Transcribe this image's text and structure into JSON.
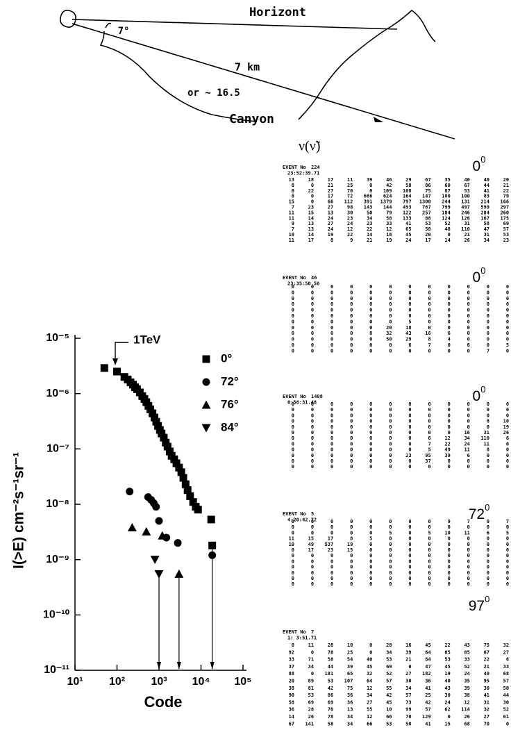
{
  "sketch": {
    "horizon": "Horizont",
    "angle": "7°",
    "distance": "7  km",
    "alt": "or ~ 16.5",
    "canyon": "Canyon",
    "symbol": "ν(ν̃)"
  },
  "chart_data": {
    "type": "scatter",
    "xlabel": "Code",
    "ylabel": "I(>E) cm⁻²s⁻¹sr⁻¹",
    "annotation": "1TeV",
    "xscale": "log",
    "yscale": "log",
    "xlim": [
      10,
      100000
    ],
    "ylim": [
      1e-11,
      1e-05
    ],
    "xticks": [
      {
        "value": 10,
        "label": "10¹"
      },
      {
        "value": 100,
        "label": "10²"
      },
      {
        "value": 1000,
        "label": "10³"
      },
      {
        "value": 10000,
        "label": "10⁴"
      },
      {
        "value": 100000,
        "label": "10⁵"
      }
    ],
    "yticks": [
      {
        "value": 1e-11,
        "label": "10⁻¹¹"
      },
      {
        "value": 1e-10,
        "label": "10⁻¹⁰"
      },
      {
        "value": 1e-09,
        "label": "10⁻⁹"
      },
      {
        "value": 1e-08,
        "label": "10⁻⁸"
      },
      {
        "value": 1e-07,
        "label": "10⁻⁷"
      },
      {
        "value": 1e-06,
        "label": "10⁻⁶"
      },
      {
        "value": 1e-05,
        "label": "10⁻⁵"
      }
    ],
    "legend": "upper right",
    "series": [
      {
        "name": "0°",
        "marker": "square",
        "color": "#000000",
        "arrow": true,
        "x": [
          50,
          100,
          150,
          180,
          210,
          240,
          270,
          300,
          350,
          400,
          450,
          500,
          560,
          620,
          700,
          780,
          860,
          950,
          1050,
          1150,
          1300,
          1450,
          1600,
          1800,
          2000,
          2300,
          2600,
          3000,
          3400,
          3800,
          4300,
          4800,
          5500,
          6500,
          7500,
          8500,
          17500,
          18500
        ],
        "values": [
          2.9e-06,
          2.5e-06,
          2e-06,
          1.8e-06,
          1.6e-06,
          1.45e-06,
          1.3e-06,
          1.2e-06,
          1.05e-06,
          9e-07,
          8e-07,
          7e-07,
          6e-07,
          5.2e-07,
          4.4e-07,
          3.7e-07,
          3.1e-07,
          2.6e-07,
          2.2e-07,
          1.9e-07,
          1.6e-07,
          1.3e-07,
          1.1e-07,
          9e-08,
          7.5e-08,
          6.5e-08,
          5.5e-08,
          4.6e-08,
          3.8e-08,
          3e-08,
          2.3e-08,
          1.8e-08,
          1.4e-08,
          1.1e-08,
          9e-09,
          8e-09,
          5.3e-09,
          1.8e-09
        ]
      },
      {
        "name": "72°",
        "marker": "circle",
        "color": "#000000",
        "arrow": false,
        "x": [
          200,
          550,
          650,
          750,
          850,
          1000,
          1500,
          2800,
          18500
        ],
        "values": [
          1.7e-08,
          1.35e-08,
          1.2e-08,
          1.05e-08,
          9e-09,
          5e-09,
          2.5e-09,
          2e-09,
          1.2e-09
        ]
      },
      {
        "name": "76°",
        "marker": "triangle-up",
        "color": "#000000",
        "arrow": true,
        "x": [
          230,
          500,
          1200,
          3000
        ],
        "values": [
          3.8e-09,
          3.2e-09,
          2.7e-09,
          5.5e-10
        ]
      },
      {
        "name": "84°",
        "marker": "triangle-down",
        "color": "#000000",
        "arrow": true,
        "x": [
          800,
          1000
        ],
        "values": [
          1e-09,
          5.5e-10
        ]
      }
    ]
  },
  "events": [
    {
      "label": "EVENT No",
      "number": 224,
      "time": "23:52:39.71",
      "angle": "0",
      "angle_sup": "0",
      "rows": [
        [
          13,
          18,
          17,
          11,
          39,
          46,
          29,
          67,
          35,
          40,
          40,
          20
        ],
        [
          8,
          0,
          21,
          25,
          0,
          42,
          58,
          86,
          60,
          67,
          44,
          21
        ],
        [
          0,
          22,
          27,
          70,
          0,
          109,
          108,
          75,
          87,
          53,
          41,
          22
        ],
        [
          8,
          0,
          17,
          72,
          686,
          624,
          164,
          147,
          180,
          100,
          83,
          79
        ],
        [
          15,
          0,
          66,
          112,
          391,
          1379,
          797,
          1300,
          244,
          131,
          214,
          166
        ],
        [
          7,
          23,
          27,
          98,
          143,
          144,
          493,
          767,
          799,
          497,
          599,
          297
        ],
        [
          11,
          15,
          13,
          30,
          50,
          79,
          122,
          257,
          184,
          246,
          284,
          260
        ],
        [
          11,
          14,
          24,
          23,
          34,
          58,
          133,
          88,
          124,
          126,
          167,
          175
        ],
        [
          9,
          13,
          27,
          24,
          23,
          33,
          41,
          53,
          52,
          31,
          58,
          69
        ],
        [
          7,
          13,
          24,
          12,
          22,
          12,
          65,
          58,
          48,
          110,
          47,
          57
        ],
        [
          10,
          14,
          19,
          22,
          14,
          18,
          45,
          20,
          0,
          21,
          31,
          53
        ],
        [
          11,
          17,
          8,
          9,
          21,
          19,
          24,
          17,
          14,
          26,
          34,
          23
        ]
      ]
    },
    {
      "label": "EVENT No",
      "number": 46,
      "time": "23:35:50.56",
      "angle": "0",
      "angle_sup": "0",
      "rows": [
        [
          0,
          0,
          0,
          0,
          0,
          0,
          0,
          0,
          0,
          0,
          0,
          0
        ],
        [
          0,
          0,
          0,
          0,
          0,
          0,
          0,
          0,
          0,
          0,
          0,
          0
        ],
        [
          0,
          0,
          0,
          0,
          0,
          0,
          0,
          0,
          0,
          0,
          0,
          0
        ],
        [
          0,
          0,
          0,
          0,
          0,
          0,
          0,
          0,
          0,
          0,
          0,
          0
        ],
        [
          0,
          0,
          0,
          0,
          0,
          0,
          0,
          0,
          0,
          0,
          0,
          0
        ],
        [
          0,
          0,
          0,
          0,
          0,
          0,
          0,
          0,
          0,
          0,
          0,
          0
        ],
        [
          0,
          0,
          0,
          0,
          0,
          0,
          5,
          0,
          0,
          0,
          0,
          0
        ],
        [
          0,
          0,
          0,
          0,
          0,
          20,
          18,
          0,
          0,
          0,
          0,
          0
        ],
        [
          0,
          0,
          0,
          0,
          8,
          32,
          43,
          16,
          6,
          0,
          0,
          0
        ],
        [
          0,
          0,
          0,
          0,
          0,
          50,
          29,
          8,
          4,
          0,
          0,
          0
        ],
        [
          0,
          0,
          0,
          0,
          0,
          0,
          6,
          7,
          0,
          6,
          0,
          5
        ],
        [
          0,
          0,
          0,
          0,
          0,
          0,
          0,
          0,
          0,
          0,
          7,
          0
        ]
      ]
    },
    {
      "label": "EVENT No",
      "number": 1408,
      "time": "0:56:31.48",
      "angle": "0",
      "angle_sup": "0",
      "rows": [
        [
          0,
          0,
          0,
          0,
          0,
          0,
          0,
          0,
          0,
          0,
          0,
          0
        ],
        [
          0,
          0,
          0,
          0,
          0,
          0,
          0,
          0,
          0,
          0,
          0,
          0
        ],
        [
          0,
          0,
          0,
          0,
          0,
          0,
          0,
          0,
          0,
          0,
          0,
          0
        ],
        [
          0,
          0,
          0,
          0,
          0,
          0,
          0,
          0,
          0,
          0,
          8,
          10
        ],
        [
          0,
          0,
          0,
          0,
          0,
          0,
          0,
          0,
          0,
          0,
          0,
          19
        ],
        [
          0,
          0,
          0,
          0,
          0,
          0,
          0,
          0,
          0,
          16,
          31,
          26
        ],
        [
          0,
          0,
          0,
          0,
          0,
          0,
          0,
          6,
          12,
          34,
          110,
          6
        ],
        [
          0,
          0,
          0,
          0,
          0,
          0,
          0,
          7,
          22,
          24,
          11,
          0
        ],
        [
          0,
          0,
          0,
          0,
          0,
          0,
          0,
          5,
          49,
          11,
          8,
          0
        ],
        [
          0,
          0,
          0,
          0,
          0,
          0,
          23,
          95,
          39,
          6,
          0,
          0
        ],
        [
          0,
          0,
          0,
          0,
          0,
          0,
          0,
          37,
          0,
          0,
          0,
          0
        ],
        [
          0,
          0,
          0,
          0,
          0,
          0,
          0,
          0,
          0,
          0,
          0,
          0
        ]
      ]
    },
    {
      "label": "EVENT No",
      "number": 5,
      "time": "4:20:42.72",
      "angle": "72",
      "angle_sup": "0",
      "rows": [
        [
          0,
          0,
          0,
          0,
          0,
          0,
          0,
          0,
          9,
          7,
          0,
          7
        ],
        [
          0,
          0,
          0,
          0,
          0,
          0,
          0,
          0,
          0,
          0,
          0,
          0
        ],
        [
          0,
          0,
          0,
          0,
          0,
          5,
          0,
          5,
          10,
          11,
          6,
          5
        ],
        [
          11,
          15,
          17,
          8,
          5,
          0,
          0,
          0,
          0,
          0,
          0,
          0
        ],
        [
          10,
          49,
          537,
          19,
          0,
          0,
          0,
          0,
          0,
          0,
          0,
          0
        ],
        [
          0,
          17,
          23,
          15,
          0,
          0,
          0,
          0,
          0,
          0,
          0,
          0
        ],
        [
          0,
          0,
          0,
          0,
          0,
          0,
          0,
          0,
          0,
          0,
          0,
          0
        ],
        [
          0,
          0,
          0,
          0,
          0,
          0,
          0,
          0,
          0,
          0,
          0,
          0
        ],
        [
          0,
          0,
          0,
          0,
          0,
          0,
          0,
          0,
          0,
          0,
          0,
          0
        ],
        [
          0,
          0,
          0,
          0,
          0,
          0,
          0,
          0,
          0,
          0,
          0,
          0
        ],
        [
          0,
          0,
          0,
          0,
          0,
          0,
          0,
          0,
          0,
          0,
          0,
          0
        ],
        [
          0,
          0,
          0,
          0,
          0,
          0,
          0,
          0,
          0,
          0,
          0,
          0
        ]
      ]
    },
    {
      "label": "EVENT No",
      "number": 7,
      "time": "1: 3:51.71",
      "angle": "97",
      "angle_sup": "0",
      "rows": [
        [
          0,
          11,
          28,
          10,
          0,
          28,
          16,
          45,
          22,
          43,
          75,
          32
        ],
        [
          92,
          0,
          78,
          25,
          0,
          34,
          39,
          64,
          85,
          85,
          67,
          27
        ],
        [
          33,
          71,
          58,
          54,
          40,
          53,
          21,
          64,
          53,
          33,
          22,
          6
        ],
        [
          37,
          34,
          44,
          39,
          45,
          69,
          0,
          47,
          45,
          52,
          21,
          33
        ],
        [
          88,
          0,
          181,
          65,
          32,
          52,
          27,
          182,
          19,
          24,
          40,
          68
        ],
        [
          20,
          89,
          53,
          107,
          64,
          57,
          30,
          36,
          40,
          35,
          95,
          57
        ],
        [
          38,
          81,
          42,
          75,
          12,
          55,
          34,
          41,
          43,
          39,
          30,
          50
        ],
        [
          90,
          53,
          86,
          36,
          34,
          42,
          57,
          25,
          30,
          38,
          41,
          44
        ],
        [
          58,
          69,
          69,
          36,
          27,
          45,
          73,
          42,
          24,
          12,
          31,
          30
        ],
        [
          36,
          28,
          70,
          13,
          55,
          10,
          99,
          57,
          62,
          114,
          32,
          52
        ],
        [
          14,
          26,
          78,
          34,
          12,
          66,
          70,
          129,
          0,
          26,
          27,
          61
        ],
        [
          67,
          141,
          58,
          34,
          66,
          53,
          58,
          41,
          15,
          68,
          70,
          0
        ]
      ]
    }
  ]
}
